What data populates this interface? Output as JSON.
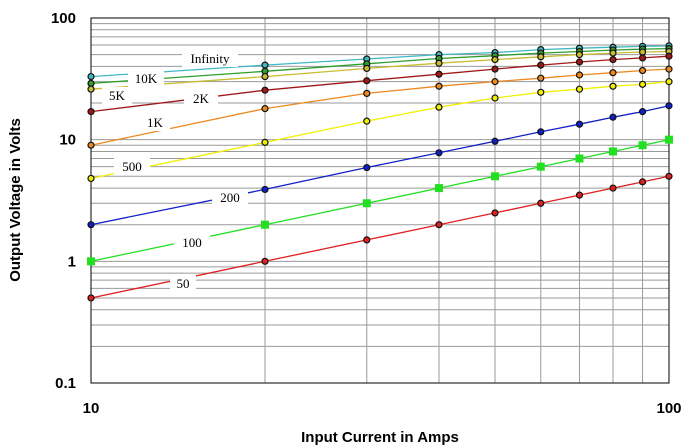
{
  "chart_data": {
    "type": "line",
    "title": "",
    "xlabel": "Input Current in Amps",
    "ylabel": "Output Voltage in Volts",
    "x_scale": "log",
    "y_scale": "log",
    "xlim": [
      10,
      100
    ],
    "ylim": [
      0.1,
      100
    ],
    "x_ticks": [
      "10",
      "100"
    ],
    "y_ticks": [
      "100",
      "10",
      "1",
      "0.1"
    ],
    "grid": true,
    "x": [
      10,
      20,
      30,
      40,
      50,
      60,
      70,
      80,
      90,
      100
    ],
    "series": [
      {
        "name": "Infinity",
        "color": "#3fb8c4",
        "marker": "circle",
        "values": [
          33,
          41,
          46,
          50,
          52,
          55,
          56.5,
          57.5,
          58.5,
          59
        ]
      },
      {
        "name": "10K",
        "color": "#2e9e2e",
        "marker": "circle",
        "values": [
          29,
          36.5,
          42,
          46.5,
          49,
          51.5,
          53,
          54.5,
          55.5,
          56
        ]
      },
      {
        "name": "5K",
        "color": "#c8bc30",
        "marker": "circle",
        "values": [
          26,
          33,
          38.5,
          42.5,
          45.5,
          48,
          50,
          51.5,
          52.5,
          53
        ]
      },
      {
        "name": "2K",
        "color": "#a01818",
        "marker": "circle",
        "values": [
          17,
          25.5,
          30.5,
          34.5,
          38,
          41,
          43.5,
          45.5,
          47,
          48.5
        ]
      },
      {
        "name": "1K",
        "color": "#ee8820",
        "marker": "circle",
        "values": [
          9,
          18,
          24,
          27.5,
          30,
          32,
          34,
          35.5,
          37,
          38
        ]
      },
      {
        "name": "500",
        "color": "#f0f000",
        "marker": "circle",
        "values": [
          4.8,
          9.5,
          14.2,
          18.5,
          22,
          24.5,
          26,
          27.5,
          28.5,
          30
        ]
      },
      {
        "name": "200",
        "color": "#1020c8",
        "marker": "circle",
        "values": [
          2,
          3.9,
          5.9,
          7.8,
          9.7,
          11.6,
          13.4,
          15.3,
          17,
          19
        ]
      },
      {
        "name": "100",
        "color": "#20e020",
        "marker": "square",
        "values": [
          1,
          2,
          3,
          4,
          5,
          6,
          7,
          8,
          9,
          10
        ]
      },
      {
        "name": "50",
        "color": "#e02020",
        "marker": "circle",
        "values": [
          0.5,
          1,
          1.5,
          2,
          2.5,
          3,
          3.5,
          4,
          4.5,
          5
        ]
      }
    ]
  }
}
